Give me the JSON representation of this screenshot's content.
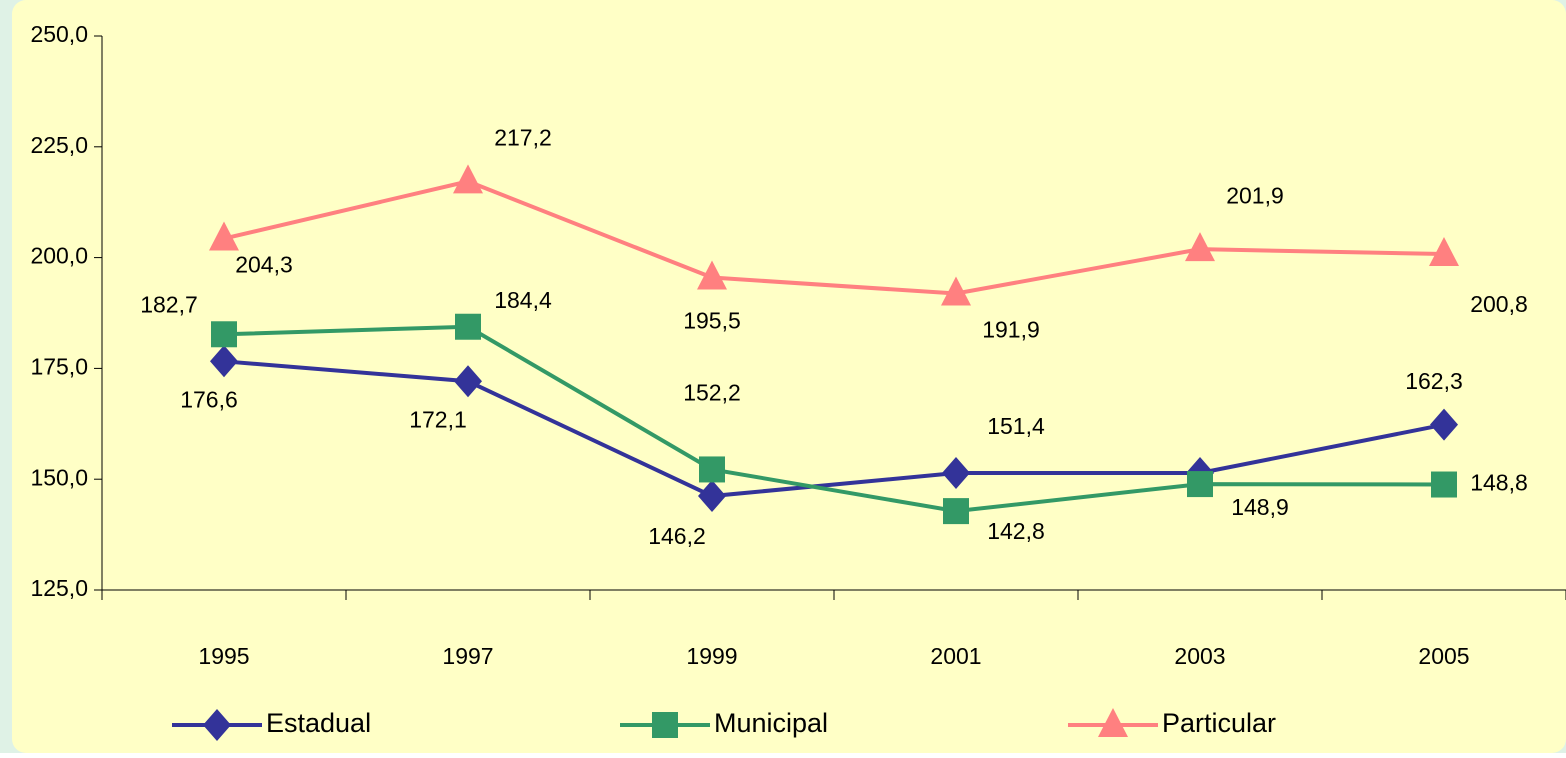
{
  "chart_data": {
    "type": "line",
    "categories": [
      "1995",
      "1997",
      "1999",
      "2001",
      "2003",
      "2005"
    ],
    "series": [
      {
        "name": "Estadual",
        "color": "#333399",
        "marker": "diamond",
        "values": [
          176.6,
          172.1,
          146.2,
          151.4,
          151.4,
          162.3
        ],
        "value_labels": [
          "176,6",
          "172,1",
          "146,2",
          "151,4",
          null,
          "162,3"
        ]
      },
      {
        "name": "Municipal",
        "color": "#339966",
        "marker": "square",
        "values": [
          182.7,
          184.4,
          152.2,
          142.8,
          148.9,
          148.8
        ],
        "value_labels": [
          "182,7",
          "184,4",
          "152,2",
          "142,8",
          "148,9",
          "148,8"
        ]
      },
      {
        "name": "Particular",
        "color": "#ff8080",
        "marker": "triangle",
        "values": [
          204.3,
          217.2,
          195.5,
          191.9,
          201.9,
          200.8
        ],
        "value_labels": [
          "204,3",
          "217,2",
          "195,5",
          "191,9",
          "201,9",
          "200,8"
        ]
      }
    ],
    "ylim": [
      125,
      250
    ],
    "yticks": [
      {
        "value": 125,
        "label": "125,0"
      },
      {
        "value": 150,
        "label": "150,0"
      },
      {
        "value": 175,
        "label": "175,0"
      },
      {
        "value": 200,
        "label": "200,0"
      },
      {
        "value": 225,
        "label": "225,0"
      },
      {
        "value": 250,
        "label": "250,0"
      }
    ],
    "grid": false,
    "legend": "bottom"
  }
}
